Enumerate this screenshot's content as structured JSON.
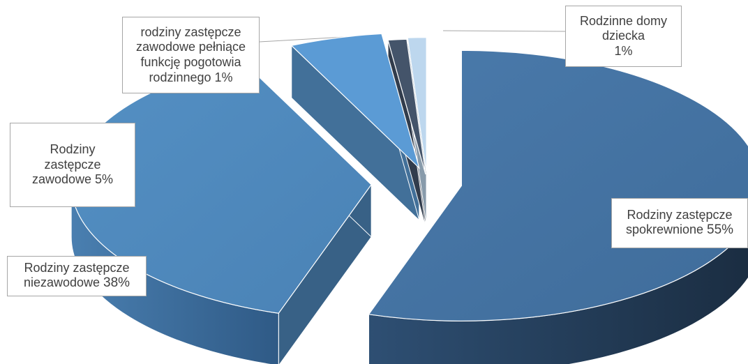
{
  "chart_data": {
    "type": "pie",
    "style": "3d-exploded",
    "title": "",
    "legend": "none",
    "slices": [
      {
        "name": "Rodziny zastępcze spokrewnione",
        "value": 55,
        "label_lines": [
          "Rodziny zastępcze",
          "spokrewnione"
        ],
        "pct_text": "55%",
        "color": "#4472a0"
      },
      {
        "name": "Rodziny zastępcze niezawodowe",
        "value": 38,
        "label_lines": [
          "Rodziny zastępcze",
          "niezawodowe"
        ],
        "pct_text": "38%",
        "color": "#4e87ba"
      },
      {
        "name": "Rodziny zastępcze zawodowe",
        "value": 5,
        "label_lines": [
          "Rodziny",
          "zastępcze",
          "zawodowe"
        ],
        "pct_text": "5%",
        "color": "#5b9bd5"
      },
      {
        "name": "rodziny zastępcze zawodowe pełniące funkcję pogotowia rodzinnego",
        "value": 1,
        "label_lines": [
          "rodziny zastępcze",
          "zawodowe pełniące",
          "funkcję pogotowia",
          "rodzinnego"
        ],
        "pct_text": "1%",
        "color": "#44546a"
      },
      {
        "name": "Rodzinne domy dziecka",
        "value": 1,
        "label_lines": [
          "Rodzinne domy",
          "dziecka"
        ],
        "pct_text": "1%",
        "color": "#bdd7ee"
      }
    ]
  }
}
